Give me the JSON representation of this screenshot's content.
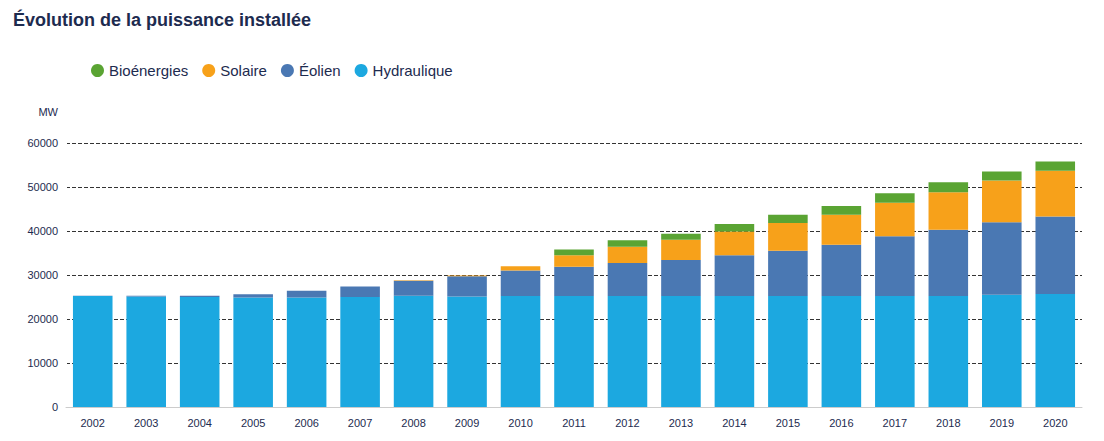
{
  "chart_data": {
    "type": "bar",
    "title": "Évolution de la puissance installée",
    "y_label": "MW",
    "stacked": true,
    "grid": true,
    "legend": "top-left",
    "categories": [
      "2002",
      "2003",
      "2004",
      "2005",
      "2006",
      "2007",
      "2008",
      "2009",
      "2010",
      "2011",
      "2012",
      "2013",
      "2014",
      "2015",
      "2016",
      "2017",
      "2018",
      "2019",
      "2020"
    ],
    "series": [
      {
        "name": "Hydraulique",
        "color": "#1ca8e0",
        "values": [
          25200,
          25100,
          25000,
          24900,
          24900,
          25000,
          25300,
          25100,
          25200,
          25200,
          25200,
          25200,
          25200,
          25200,
          25200,
          25200,
          25200,
          25500,
          25700
        ]
      },
      {
        "name": "Éolien",
        "color": "#4a78b3",
        "values": [
          100,
          200,
          300,
          700,
          1500,
          2400,
          3400,
          4600,
          5800,
          6700,
          7500,
          8200,
          9300,
          10300,
          11700,
          13600,
          15100,
          16500,
          17600
        ]
      },
      {
        "name": "Solaire",
        "color": "#f7a11a",
        "values": [
          0,
          0,
          0,
          0,
          0,
          0,
          100,
          200,
          1000,
          2600,
          3700,
          4600,
          5400,
          6300,
          6800,
          7600,
          8500,
          9500,
          10400
        ]
      },
      {
        "name": "Bioénergies",
        "color": "#5aa433",
        "values": [
          0,
          0,
          0,
          0,
          0,
          0,
          0,
          0,
          0,
          1300,
          1500,
          1400,
          1700,
          1900,
          2000,
          2200,
          2300,
          2000,
          2100
        ]
      }
    ],
    "ylim": [
      0,
      60000
    ],
    "yticks": [
      0,
      10000,
      20000,
      30000,
      40000,
      50000,
      60000
    ]
  }
}
